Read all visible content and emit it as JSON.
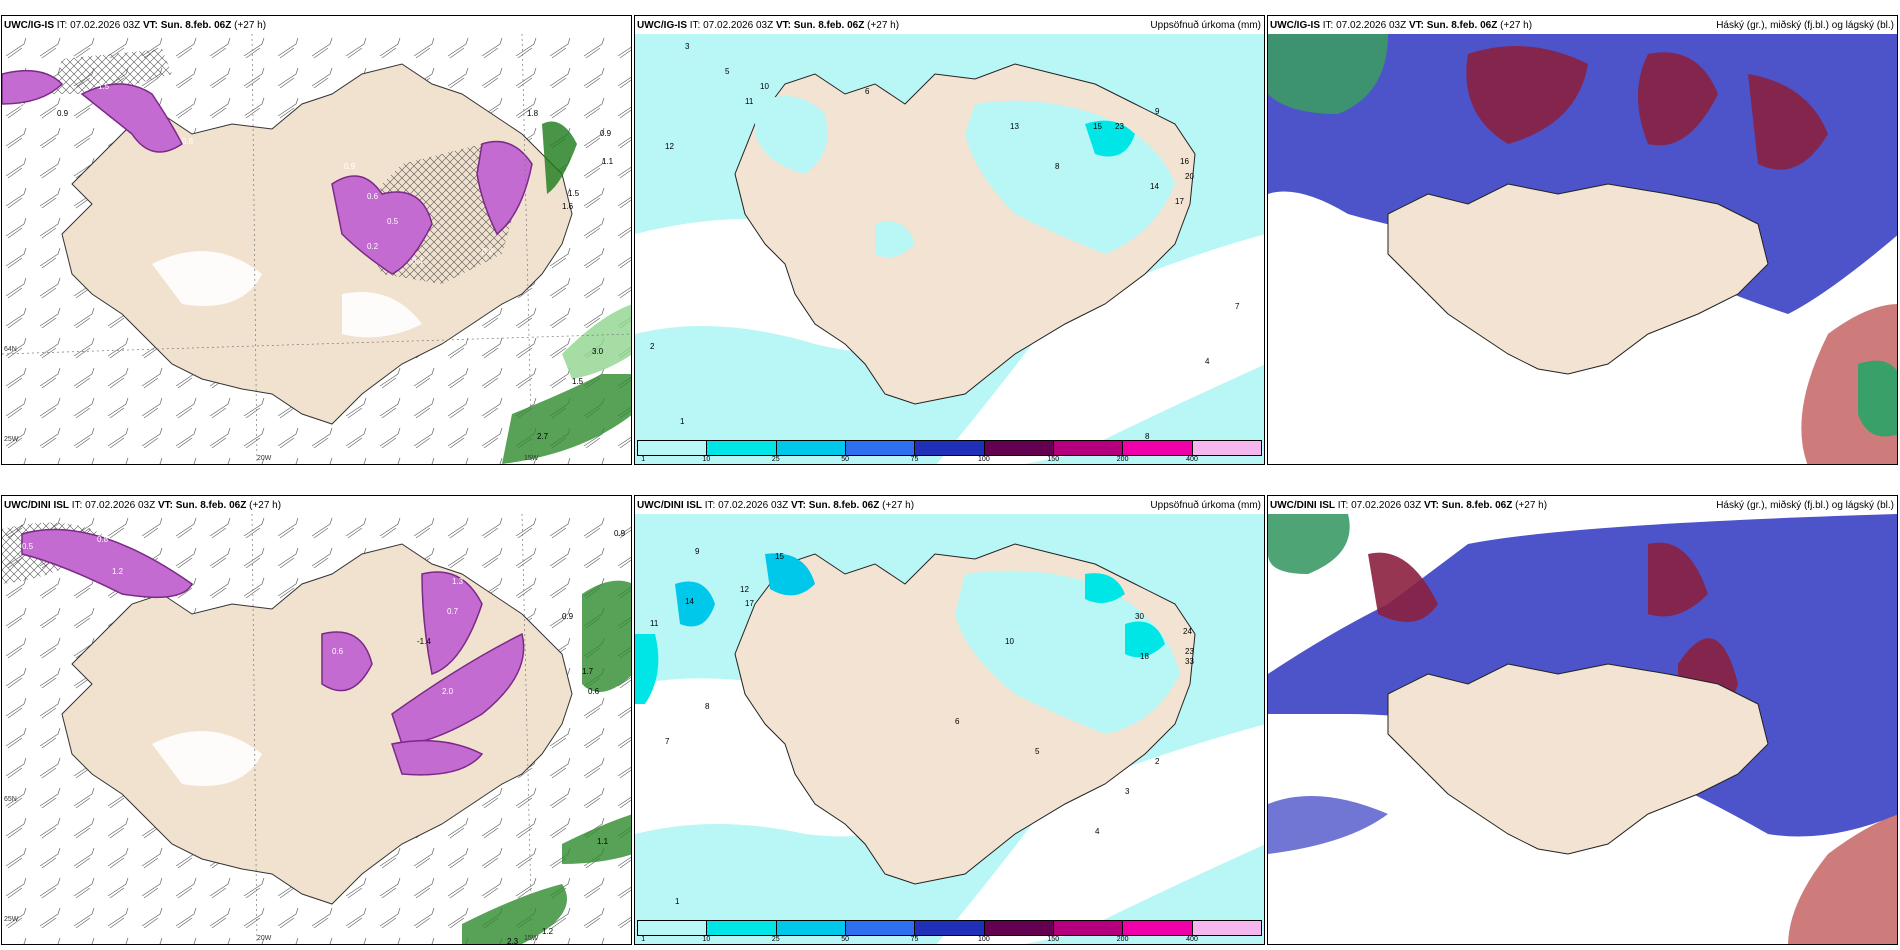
{
  "panels": {
    "p1": {
      "model": "UWC/IG-IS",
      "it": "IT: 07.02.2026 03Z",
      "vt": "VT: Sun. 8.feb. 06Z",
      "lead": "(+27 h)"
    },
    "p2": {
      "model": "UWC/IG-IS",
      "it": "IT: 07.02.2026 03Z",
      "vt": "VT: Sun. 8.feb. 06Z",
      "lead": "(+27 h)",
      "right_title": "Uppsöfnuð úrkoma (mm)"
    },
    "p3": {
      "model": "UWC/IG-IS",
      "it": "IT: 07.02.2026 03Z",
      "vt": "VT: Sun. 8.feb. 06Z",
      "lead": "(+27 h)",
      "right_title": "Háský (gr.), miðský (fj.bl.) og lágský (bl.)"
    },
    "p4": {
      "model": "UWC/DINI ISL",
      "it": "IT: 07.02.2026 03Z",
      "vt": "VT: Sun. 8.feb. 06Z",
      "lead": "(+27 h)"
    },
    "p5": {
      "model": "UWC/DINI ISL",
      "it": "IT: 07.02.2026 03Z",
      "vt": "VT: Sun. 8.feb. 06Z",
      "lead": "(+27 h)",
      "right_title": "Uppsöfnuð úrkoma (mm)"
    },
    "p6": {
      "model": "UWC/DINI ISL",
      "it": "IT: 07.02.2026 03Z",
      "vt": "VT: Sun. 8.feb. 06Z",
      "lead": "(+27 h)",
      "right_title": "Háský (gr.), miðský (fj.bl.) og lágský (bl.)"
    }
  },
  "axis_labels": {
    "lon_20w": "20W",
    "lon_15w": "15W",
    "lon_25w": "25W",
    "lat_64n": "64N",
    "lat_65n": "65N"
  },
  "legend": {
    "ticks": [
      "1",
      "10",
      "25",
      "50",
      "75",
      "100",
      "150",
      "200",
      "400"
    ],
    "colors": [
      "#b9f6f6",
      "#00e6e6",
      "#00c8ea",
      "#2e6ff0",
      "#1f2fb8",
      "#640050",
      "#b4007e",
      "#f000a8",
      "#f6b6f0"
    ]
  },
  "markers": {
    "p1": [
      "0.6",
      "0.3",
      "0.9",
      "1.5",
      "0.8",
      "1",
      "0.9",
      "1.8",
      "0.9",
      "1.1",
      "1.5",
      "1.6",
      "0.6",
      "0.5",
      "0.2",
      "0.4",
      "0.8",
      "3.0",
      "1.5",
      "2.7"
    ],
    "p2": [
      "3",
      "5",
      "10",
      "11",
      "6",
      "12",
      "15",
      "23",
      "13",
      "8",
      "9",
      "14",
      "16",
      "20",
      "17",
      "7",
      "4",
      "2",
      "1",
      "8"
    ],
    "p4": [
      "0.5",
      "0.8",
      "1.2",
      "1.3",
      "0.7",
      "0.9",
      "-1.4",
      "0.6",
      "1.7",
      "0.6",
      "1.1",
      "1.2",
      "2.3",
      "0.9",
      "2.0"
    ],
    "p5": [
      "15",
      "14",
      "12",
      "17",
      "11",
      "30",
      "24",
      "23",
      "33",
      "18",
      "8",
      "6",
      "5",
      "4",
      "3",
      "2",
      "1",
      "10",
      "7",
      "9"
    ]
  }
}
